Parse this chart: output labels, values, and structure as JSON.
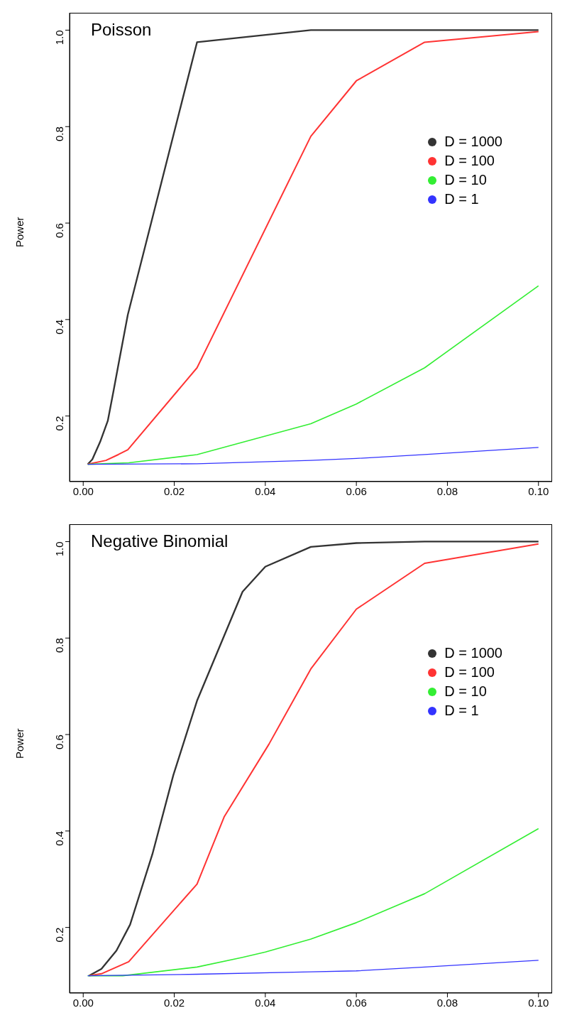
{
  "chart_data": [
    {
      "type": "line",
      "title": "Poisson",
      "ylabel": "Power",
      "xlim": [
        -0.003,
        0.103
      ],
      "xticks": [
        {
          "value": 0,
          "label": "0.00"
        },
        {
          "value": 0.02,
          "label": "0.02"
        },
        {
          "value": 0.04,
          "label": "0.04"
        },
        {
          "value": 0.06,
          "label": "0.06"
        },
        {
          "value": 0.08,
          "label": "0.08"
        },
        {
          "value": 0.1,
          "label": "0.10"
        }
      ],
      "ylim": [
        0.064,
        1.036
      ],
      "yticks": [
        {
          "value": 0.2,
          "label": "0.2"
        },
        {
          "value": 0.4,
          "label": "0.4"
        },
        {
          "value": 0.6,
          "label": "0.6"
        },
        {
          "value": 0.8,
          "label": "0.8"
        },
        {
          "value": 1,
          "label": "1.0"
        }
      ],
      "legend": "right",
      "grid": false,
      "marker": "none",
      "line_style": "solid",
      "series": [
        {
          "name": "D = 1000",
          "color": "#333333",
          "x": [
            0.001,
            0.002,
            0.0037,
            0.0054,
            0.0067,
            0.008,
            0.0098,
            0.025,
            0.05,
            0.1
          ],
          "values": [
            0.1,
            0.11,
            0.146,
            0.19,
            0.254,
            0.32,
            0.41,
            0.975,
            1.0,
            1.0
          ]
        },
        {
          "name": "D = 100",
          "color": "#ff3333",
          "x": [
            0.001,
            0.005,
            0.0077,
            0.0098,
            0.025,
            0.05,
            0.06,
            0.075,
            0.1
          ],
          "values": [
            0.1,
            0.108,
            0.12,
            0.13,
            0.3,
            0.78,
            0.895,
            0.975,
            0.997
          ]
        },
        {
          "name": "D = 10",
          "color": "#33ee33",
          "x": [
            0.001,
            0.01,
            0.025,
            0.05,
            0.06,
            0.075,
            0.1
          ],
          "values": [
            0.1,
            0.103,
            0.12,
            0.184,
            0.225,
            0.3,
            0.47
          ]
        },
        {
          "name": "D = 1",
          "color": "#3333ff",
          "x": [
            0.001,
            0.025,
            0.05,
            0.06,
            0.075,
            0.1
          ],
          "values": [
            0.1,
            0.101,
            0.108,
            0.112,
            0.12,
            0.135
          ]
        }
      ]
    },
    {
      "type": "line",
      "title": "Negative Binomial",
      "ylabel": "Power",
      "xlim": [
        -0.003,
        0.103
      ],
      "xticks": [
        {
          "value": 0,
          "label": "0.00"
        },
        {
          "value": 0.02,
          "label": "0.02"
        },
        {
          "value": 0.04,
          "label": "0.04"
        },
        {
          "value": 0.06,
          "label": "0.06"
        },
        {
          "value": 0.08,
          "label": "0.08"
        },
        {
          "value": 0.1,
          "label": "0.10"
        }
      ],
      "ylim": [
        0.064,
        1.036
      ],
      "yticks": [
        {
          "value": 0.2,
          "label": "0.2"
        },
        {
          "value": 0.4,
          "label": "0.4"
        },
        {
          "value": 0.6,
          "label": "0.6"
        },
        {
          "value": 0.8,
          "label": "0.8"
        },
        {
          "value": 1,
          "label": "1.0"
        }
      ],
      "legend": "right",
      "grid": false,
      "marker": "none",
      "line_style": "solid",
      "series": [
        {
          "name": "D = 1000",
          "color": "#333333",
          "x": [
            0.0013,
            0.004,
            0.0073,
            0.0103,
            0.0152,
            0.0198,
            0.025,
            0.035,
            0.04,
            0.05,
            0.06,
            0.075,
            0.1
          ],
          "values": [
            0.1,
            0.114,
            0.152,
            0.206,
            0.352,
            0.516,
            0.67,
            0.896,
            0.948,
            0.989,
            0.997,
            1.0,
            1.0
          ]
        },
        {
          "name": "D = 100",
          "color": "#ff3333",
          "x": [
            0.0013,
            0.004,
            0.01,
            0.025,
            0.031,
            0.0408,
            0.05,
            0.06,
            0.075,
            0.1
          ],
          "values": [
            0.1,
            0.104,
            0.129,
            0.29,
            0.43,
            0.58,
            0.736,
            0.86,
            0.955,
            0.995
          ]
        },
        {
          "name": "D = 10",
          "color": "#33ee33",
          "x": [
            0.001,
            0.0087,
            0.025,
            0.035,
            0.04,
            0.05,
            0.06,
            0.075,
            0.1
          ],
          "values": [
            0.1,
            0.1,
            0.118,
            0.138,
            0.149,
            0.176,
            0.21,
            0.27,
            0.405
          ]
        },
        {
          "name": "D = 1",
          "color": "#3333ff",
          "x": [
            0.001,
            0.025,
            0.05,
            0.06,
            0.075,
            0.1
          ],
          "values": [
            0.1,
            0.103,
            0.108,
            0.11,
            0.118,
            0.132
          ]
        }
      ]
    }
  ]
}
